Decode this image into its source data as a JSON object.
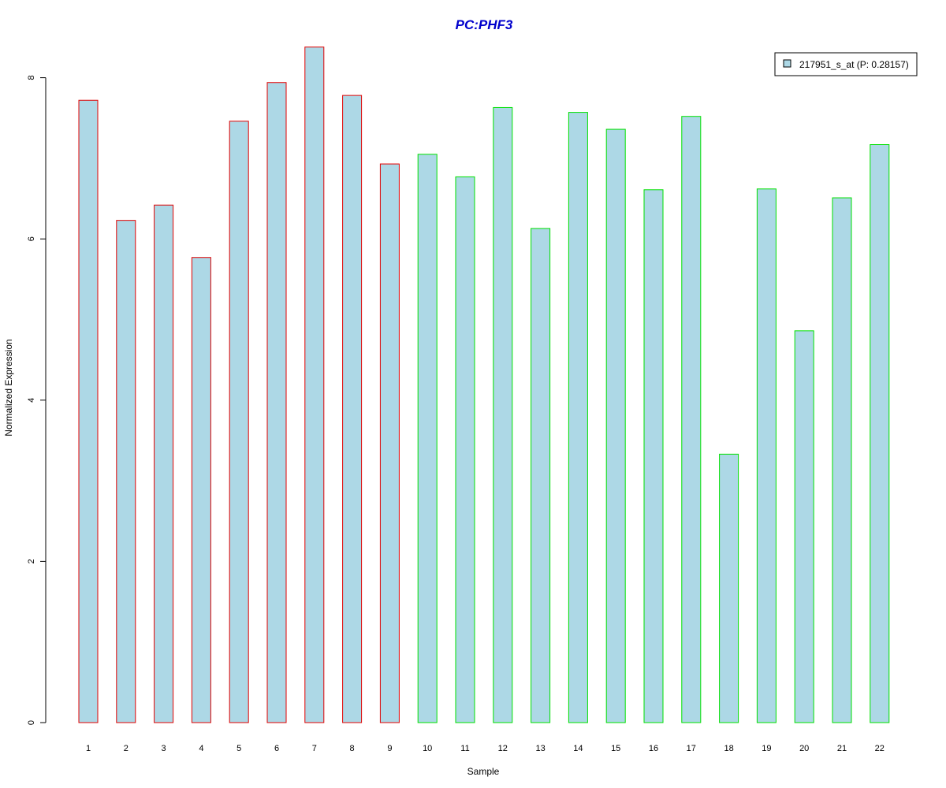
{
  "chart_data": {
    "type": "bar",
    "title": "PC:PHF3",
    "xlabel": "Sample",
    "ylabel": "Normalized Expression",
    "ylim": [
      0,
      8.4
    ],
    "yticks": [
      "0",
      "2",
      "4",
      "6",
      "8"
    ],
    "categories": [
      "1",
      "2",
      "3",
      "4",
      "5",
      "6",
      "7",
      "8",
      "9",
      "10",
      "11",
      "12",
      "13",
      "14",
      "15",
      "16",
      "17",
      "18",
      "19",
      "20",
      "21",
      "22"
    ],
    "series": [
      {
        "name": "217951_s_at (P: 0.28157)",
        "values": [
          7.72,
          6.23,
          6.42,
          5.77,
          7.46,
          7.94,
          8.38,
          7.78,
          6.93,
          7.05,
          6.77,
          7.63,
          6.13,
          7.57,
          7.36,
          6.61,
          7.52,
          3.33,
          6.62,
          4.86,
          6.51,
          7.17
        ],
        "outline": [
          "red",
          "red",
          "red",
          "red",
          "red",
          "red",
          "red",
          "red",
          "red",
          "green",
          "green",
          "green",
          "green",
          "green",
          "green",
          "green",
          "green",
          "green",
          "green",
          "green",
          "green",
          "green"
        ]
      }
    ],
    "colors": {
      "fill": "#add8e6",
      "red": "#e00000",
      "green": "#00e000",
      "title": "#0000cc"
    },
    "legend": {
      "label": "217951_s_at (P: 0.28157)",
      "position": "top-right"
    },
    "grid": false
  }
}
